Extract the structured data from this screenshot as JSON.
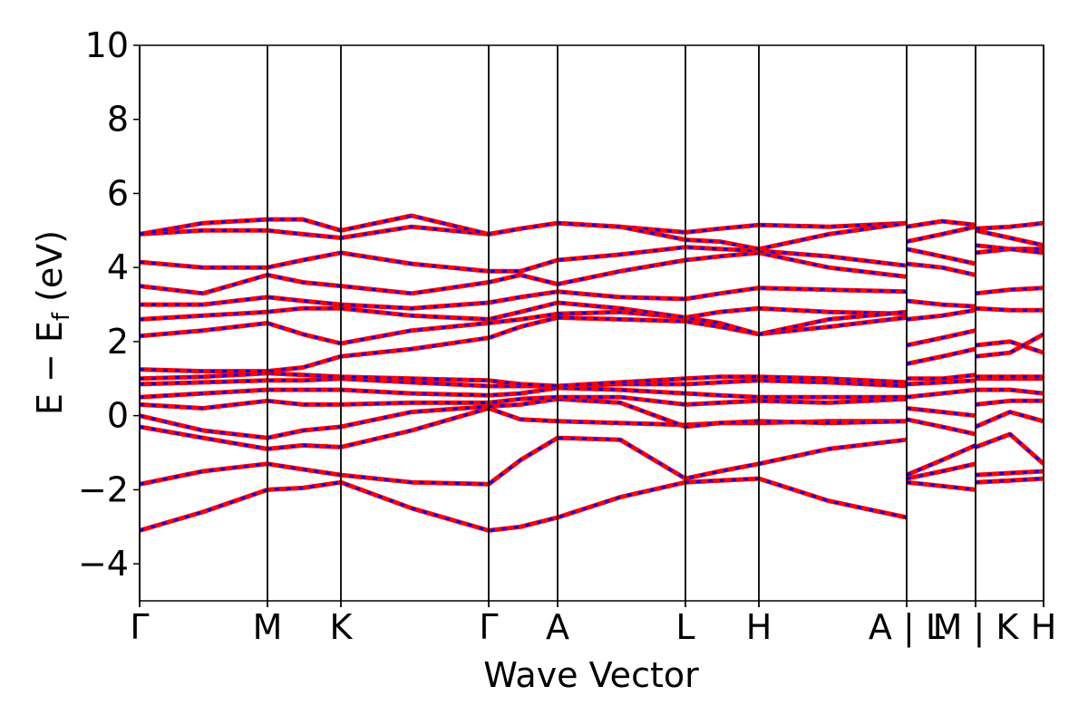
{
  "chart_data": {
    "type": "line",
    "xlabel": "Wave Vector",
    "ylabel": {
      "main": "E − E",
      "sub": "f",
      "unit": "(eV)"
    },
    "xlim": [
      0,
      9.97
    ],
    "ylim": [
      -5,
      10
    ],
    "xticks": [
      {
        "value": 0,
        "label": "Γ"
      },
      {
        "value": 1.41,
        "label": "M"
      },
      {
        "value": 2.22,
        "label": "K"
      },
      {
        "value": 3.85,
        "label": "Γ"
      },
      {
        "value": 4.61,
        "label": "A"
      },
      {
        "value": 6.02,
        "label": "L"
      },
      {
        "value": 6.83,
        "label": "H"
      },
      {
        "value": 8.46,
        "label": "A | L"
      },
      {
        "value": 9.22,
        "label": "M | K"
      },
      {
        "value": 9.97,
        "label": "H"
      }
    ],
    "yticks": [
      {
        "value": -4,
        "label": "−4"
      },
      {
        "value": -2,
        "label": "−2"
      },
      0,
      2,
      4,
      6,
      8,
      10
    ],
    "line_color": "#ff0000",
    "dash_color": "#0000ff",
    "x": [
      0,
      0.7,
      1.41,
      1.8,
      2.22,
      3.0,
      3.85,
      4.2,
      4.61,
      5.3,
      6.02,
      6.4,
      6.83,
      7.6,
      8.46,
      8.46,
      8.46,
      8.85,
      9.22,
      9.22,
      9.22,
      9.6,
      9.97
    ],
    "series": [
      {
        "values": [
          -3.1,
          -2.6,
          -2.0,
          -1.95,
          -1.8,
          -2.5,
          -3.1,
          -3.0,
          -2.75,
          -2.2,
          -1.8,
          -1.75,
          -1.7,
          -2.3,
          -2.75,
          null,
          -1.8,
          -1.9,
          -2.0,
          null,
          -1.8,
          -1.75,
          -1.7
        ]
      },
      {
        "values": [
          -1.85,
          -1.5,
          -1.3,
          -1.45,
          -1.6,
          -1.8,
          -1.85,
          -1.2,
          -0.6,
          -0.65,
          -1.7,
          -1.5,
          -1.3,
          -0.9,
          -0.65,
          null,
          -1.7,
          -1.5,
          -1.3,
          null,
          -1.6,
          -1.55,
          -1.5
        ]
      },
      {
        "values": [
          -0.3,
          -0.6,
          -0.9,
          -0.8,
          -0.85,
          -0.4,
          0.2,
          -0.1,
          -0.15,
          -0.2,
          -0.25,
          -0.2,
          -0.2,
          -0.15,
          -0.15,
          null,
          -1.6,
          -1.2,
          -0.8,
          null,
          -0.85,
          -0.5,
          -1.3
        ]
      },
      {
        "values": [
          0.0,
          -0.4,
          -0.6,
          -0.4,
          -0.3,
          0.1,
          0.25,
          0.3,
          0.45,
          0.35,
          -0.3,
          -0.2,
          -0.15,
          -0.2,
          -0.15,
          null,
          -0.1,
          -0.3,
          -0.5,
          null,
          -0.3,
          0.1,
          -0.15
        ]
      },
      {
        "values": [
          0.3,
          0.2,
          0.4,
          0.3,
          0.3,
          0.35,
          0.35,
          0.45,
          0.5,
          0.5,
          0.3,
          0.35,
          0.4,
          0.35,
          0.45,
          null,
          0.2,
          0.1,
          0.0,
          null,
          0.3,
          0.4,
          0.4
        ]
      },
      {
        "values": [
          0.5,
          0.6,
          0.7,
          0.7,
          0.7,
          0.6,
          0.55,
          0.6,
          0.75,
          0.7,
          0.6,
          0.55,
          0.5,
          0.5,
          0.5,
          null,
          0.5,
          0.6,
          0.7,
          null,
          0.7,
          0.7,
          0.6
        ]
      },
      {
        "values": [
          0.85,
          0.9,
          0.95,
          0.95,
          1.0,
          0.9,
          0.8,
          0.8,
          0.8,
          0.85,
          0.85,
          0.9,
          0.95,
          0.9,
          0.8,
          null,
          0.85,
          0.9,
          0.95,
          null,
          1.0,
          1.0,
          1.0
        ]
      },
      {
        "values": [
          1.0,
          1.05,
          1.15,
          1.1,
          1.05,
          1.0,
          0.95,
          0.85,
          0.8,
          0.9,
          1.0,
          1.05,
          1.05,
          1.0,
          0.9,
          null,
          1.0,
          1.0,
          1.1,
          null,
          1.05,
          1.05,
          1.05
        ]
      },
      {
        "values": [
          1.25,
          1.2,
          1.2,
          1.3,
          1.6,
          1.8,
          2.1,
          2.4,
          2.65,
          2.6,
          2.55,
          2.4,
          2.2,
          2.4,
          2.65,
          null,
          1.4,
          1.6,
          1.8,
          null,
          1.9,
          2.0,
          1.7
        ]
      },
      {
        "values": [
          2.15,
          2.3,
          2.5,
          2.2,
          1.95,
          2.3,
          2.5,
          2.6,
          2.75,
          2.8,
          2.65,
          2.8,
          2.9,
          2.8,
          2.75,
          null,
          1.9,
          2.1,
          2.3,
          null,
          1.6,
          1.7,
          2.2
        ]
      },
      {
        "values": [
          2.6,
          2.7,
          2.8,
          2.9,
          2.9,
          2.7,
          2.6,
          2.8,
          3.05,
          2.9,
          2.65,
          2.5,
          2.2,
          2.6,
          2.8,
          null,
          2.6,
          2.7,
          2.85,
          null,
          2.9,
          2.85,
          2.85
        ]
      },
      {
        "values": [
          3.0,
          3.0,
          3.2,
          3.1,
          3.0,
          2.9,
          3.05,
          3.2,
          3.35,
          3.2,
          3.15,
          3.3,
          3.45,
          3.4,
          3.35,
          null,
          3.1,
          3.0,
          2.95,
          null,
          3.3,
          3.4,
          3.45
        ]
      },
      {
        "values": [
          3.5,
          3.3,
          3.8,
          3.6,
          3.5,
          3.3,
          3.6,
          3.8,
          3.55,
          3.9,
          4.2,
          4.3,
          4.4,
          4.0,
          3.75,
          null,
          4.1,
          4.0,
          3.8,
          null,
          4.4,
          4.5,
          4.5
        ]
      },
      {
        "values": [
          4.15,
          4.0,
          4.0,
          4.2,
          4.4,
          4.1,
          3.9,
          3.9,
          4.2,
          4.35,
          4.55,
          4.5,
          4.45,
          4.3,
          4.05,
          null,
          4.5,
          4.3,
          4.1,
          null,
          4.6,
          4.5,
          4.4
        ]
      },
      {
        "values": [
          4.9,
          5.0,
          5.0,
          4.9,
          4.8,
          5.1,
          4.9,
          5.05,
          5.2,
          5.1,
          4.95,
          5.05,
          5.15,
          5.1,
          5.2,
          null,
          4.7,
          4.9,
          5.1,
          null,
          5.0,
          4.8,
          4.6
        ]
      },
      {
        "values": [
          4.9,
          5.2,
          5.3,
          5.3,
          5.0,
          5.4,
          4.9,
          5.05,
          5.2,
          5.1,
          4.75,
          4.7,
          4.5,
          4.9,
          5.2,
          null,
          5.1,
          5.25,
          5.15,
          null,
          5.05,
          5.1,
          5.2
        ]
      }
    ]
  }
}
